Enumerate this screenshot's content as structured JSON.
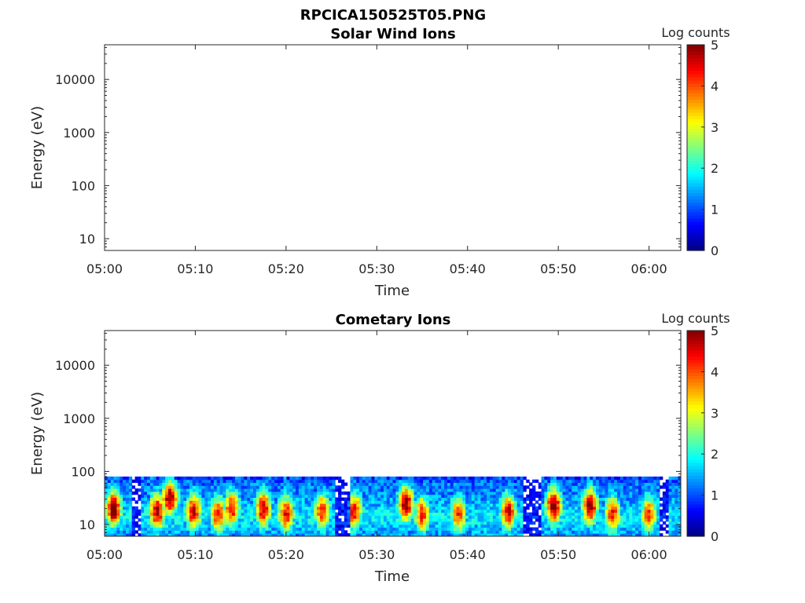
{
  "figure_title": "RPCICA150525T05.PNG",
  "chart_data": [
    {
      "type": "heatmap",
      "title": "Solar Wind Ions",
      "xlabel": "Time",
      "ylabel": "Energy (eV)",
      "x_ticks": [
        "05:00",
        "05:10",
        "05:20",
        "05:30",
        "05:40",
        "05:50",
        "06:00"
      ],
      "x_range_minutes": [
        0,
        63.5
      ],
      "y_scale": "log",
      "y_range": [
        6,
        45000
      ],
      "y_ticks": [
        10,
        100,
        1000,
        10000
      ],
      "y_tick_labels": [
        "10",
        "100",
        "1000",
        "10000"
      ],
      "colorbar": {
        "label": "Log counts",
        "range": [
          0,
          5
        ],
        "ticks": [
          "0",
          "1",
          "2",
          "3",
          "4",
          "5"
        ],
        "colormap": "jet"
      },
      "data_description": "no counts"
    },
    {
      "type": "heatmap",
      "title": "Cometary Ions",
      "xlabel": "Time",
      "ylabel": "Energy (eV)",
      "x_ticks": [
        "05:00",
        "05:10",
        "05:20",
        "05:30",
        "05:40",
        "05:50",
        "06:00"
      ],
      "x_range_minutes": [
        0,
        63.5
      ],
      "y_scale": "log",
      "y_range": [
        6,
        45000
      ],
      "y_ticks": [
        10,
        100,
        1000,
        10000
      ],
      "y_tick_labels": [
        "10",
        "100",
        "1000",
        "10000"
      ],
      "colorbar": {
        "label": "Log counts",
        "range": [
          0,
          5
        ],
        "ticks": [
          "0",
          "1",
          "2",
          "3",
          "4",
          "5"
        ],
        "colormap": "jet"
      },
      "energy_max_eV": 80,
      "peak_log_counts": [
        {
          "t_min": 1.0,
          "log_e": 1.3,
          "v": 4.2
        },
        {
          "t_min": 5.8,
          "log_e": 1.25,
          "v": 3.8
        },
        {
          "t_min": 7.2,
          "log_e": 1.5,
          "v": 4.0
        },
        {
          "t_min": 9.8,
          "log_e": 1.25,
          "v": 3.6
        },
        {
          "t_min": 12.5,
          "log_e": 1.2,
          "v": 3.3
        },
        {
          "t_min": 14.0,
          "log_e": 1.3,
          "v": 3.4
        },
        {
          "t_min": 17.5,
          "log_e": 1.3,
          "v": 3.7
        },
        {
          "t_min": 20.0,
          "log_e": 1.2,
          "v": 3.4
        },
        {
          "t_min": 24.0,
          "log_e": 1.25,
          "v": 3.3
        },
        {
          "t_min": 27.5,
          "log_e": 1.25,
          "v": 3.4
        },
        {
          "t_min": 33.2,
          "log_e": 1.4,
          "v": 4.0
        },
        {
          "t_min": 35.0,
          "log_e": 1.2,
          "v": 3.2
        },
        {
          "t_min": 39.0,
          "log_e": 1.2,
          "v": 3.1
        },
        {
          "t_min": 44.5,
          "log_e": 1.25,
          "v": 3.5
        },
        {
          "t_min": 49.5,
          "log_e": 1.35,
          "v": 4.1
        },
        {
          "t_min": 53.5,
          "log_e": 1.35,
          "v": 3.9
        },
        {
          "t_min": 56.0,
          "log_e": 1.2,
          "v": 3.3
        },
        {
          "t_min": 60.0,
          "log_e": 1.2,
          "v": 3.0
        }
      ],
      "quiet_intervals_min": [
        [
          3.0,
          4.0
        ],
        [
          25.5,
          27.0
        ],
        [
          46.0,
          48.0
        ],
        [
          61.0,
          62.0
        ]
      ]
    }
  ]
}
